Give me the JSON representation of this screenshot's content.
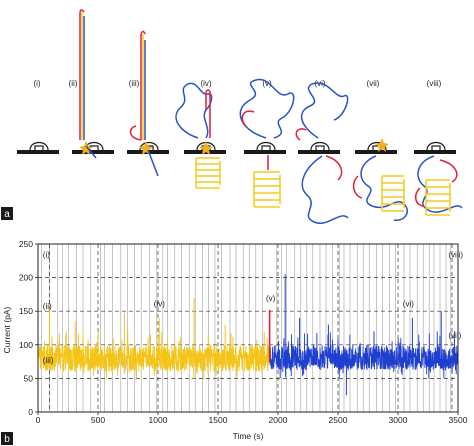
{
  "panel_a": {
    "label": "a",
    "stages": [
      "(i)",
      "(ii)",
      "(iii)",
      "(iv)",
      "(v)",
      "(vi)",
      "(vii)",
      "(viii)"
    ],
    "colors": {
      "strand_red": "#e0203a",
      "strand_blue": "#2a52c8",
      "strand_yellow": "#f4cc1c",
      "motor_star": "#f0b020",
      "membrane": "#1a1a1a"
    }
  },
  "panel_b": {
    "label": "b",
    "stage_labels": [
      {
        "text": "(i)",
        "t": 40,
        "current": 230
      },
      {
        "text": "(ii)",
        "t": 40,
        "current": 153
      },
      {
        "text": "(iii)",
        "t": 40,
        "current": 73
      },
      {
        "text": "(iv)",
        "t": 965,
        "current": 157
      },
      {
        "text": "(v)",
        "t": 1900,
        "current": 165
      },
      {
        "text": "(vi)",
        "t": 3040,
        "current": 157
      },
      {
        "text": "(vii)",
        "t": 3420,
        "current": 110
      },
      {
        "text": "(viii)",
        "t": 3420,
        "current": 230
      }
    ]
  },
  "chart_data": {
    "type": "line",
    "xlabel": "Time (s)",
    "ylabel": "Current (pA)",
    "xlim": [
      0,
      3500
    ],
    "ylim": [
      0,
      250
    ],
    "xticks": [
      0,
      500,
      1000,
      1500,
      2000,
      2500,
      3000,
      3500
    ],
    "yticks": [
      0,
      50,
      100,
      150,
      200,
      250
    ],
    "grid": "dashed",
    "series": [
      {
        "color": "#f4c418",
        "t_range": [
          0,
          1930
        ],
        "base_current": 80,
        "noise_band": [
          60,
          100
        ],
        "spikes": [
          [
            95,
            155
          ],
          [
            310,
            135
          ],
          [
            720,
            148
          ],
          [
            1010,
            140
          ],
          [
            1300,
            170
          ],
          [
            1560,
            130
          ]
        ]
      },
      {
        "color": "#1f3fcf",
        "t_range": [
          1930,
          3500
        ],
        "base_current": 80,
        "noise_band": [
          62,
          100
        ],
        "spikes": [
          [
            2060,
            205
          ],
          [
            2180,
            140
          ],
          [
            2420,
            130
          ],
          [
            2570,
            25
          ],
          [
            2800,
            120
          ],
          [
            3120,
            140
          ],
          [
            3360,
            150
          ],
          [
            3470,
            120
          ]
        ]
      }
    ],
    "transition_marker": {
      "t": 1930,
      "current_range": [
        75,
        152
      ],
      "color": "#e0203a"
    },
    "event_lines": {
      "color": "#888888",
      "t": [
        30,
        95,
        165,
        205,
        255,
        320,
        375,
        440,
        520,
        555,
        620,
        690,
        745,
        805,
        860,
        930,
        990,
        1040,
        1080,
        1140,
        1195,
        1260,
        1310,
        1370,
        1420,
        1475,
        1530,
        1600,
        1650,
        1710,
        1760,
        1815,
        1870,
        1990,
        2030,
        2070,
        2140,
        2190,
        2240,
        2290,
        2350,
        2400,
        2455,
        2510,
        2550,
        2600,
        2660,
        2710,
        2760,
        2820,
        2870,
        2930,
        2980,
        3050,
        3100,
        3160,
        3210,
        3260,
        3300,
        3350,
        3400,
        3440
      ]
    },
    "dashed_vlines": [
      95,
      500,
      1000,
      1500,
      2000,
      2500,
      3000,
      3450
    ]
  }
}
